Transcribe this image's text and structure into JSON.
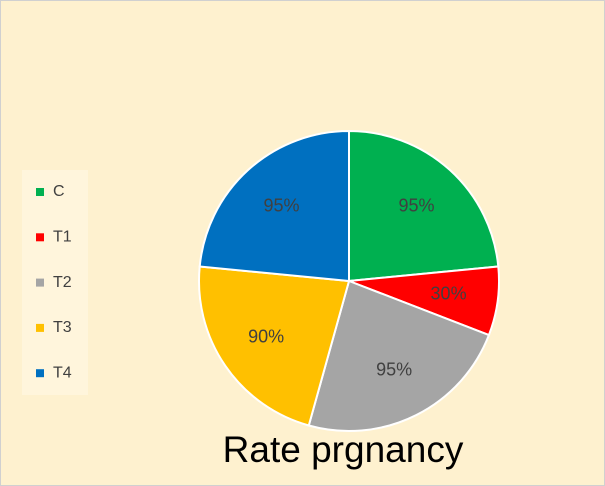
{
  "chart_data": {
    "type": "pie",
    "title": "Rate prgnancy",
    "categories": [
      "C",
      "T1",
      "T2",
      "T3",
      "T4"
    ],
    "values": [
      95,
      30,
      95,
      90,
      95
    ],
    "value_labels": [
      "95%",
      "30%",
      "95%",
      "90%",
      "95%"
    ],
    "colors": [
      "#00b050",
      "#ff0000",
      "#a5a5a5",
      "#ffc000",
      "#0070c0"
    ],
    "legend": "left"
  }
}
